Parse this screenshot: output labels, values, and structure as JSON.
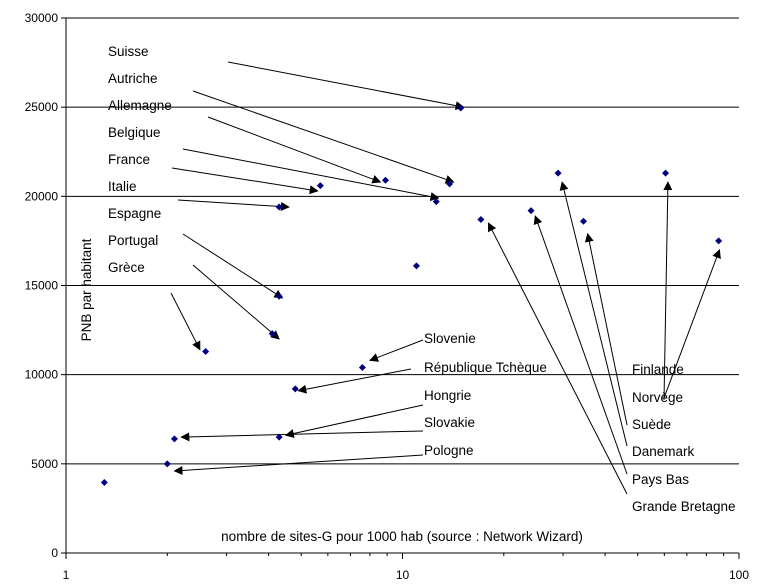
{
  "chart_data": {
    "type": "scatter",
    "title": "",
    "xlabel": "nombre de sites-G pour 1000 hab (source : Network Wizard)",
    "ylabel": "PNB par habitant",
    "xscale": "log",
    "xlim": [
      1,
      100
    ],
    "ylim": [
      0,
      30000
    ],
    "x_ticks": [
      "1",
      "10",
      "100"
    ],
    "y_ticks": [
      "0",
      "5000",
      "10000",
      "15000",
      "20000",
      "25000",
      "30000"
    ],
    "grid": "horizontal",
    "marker_color": "#000080",
    "points": [
      {
        "x": 14.9,
        "y": 24950
      },
      {
        "x": 13.8,
        "y": 20700
      },
      {
        "x": 8.9,
        "y": 20900
      },
      {
        "x": 12.6,
        "y": 19700
      },
      {
        "x": 5.7,
        "y": 20600
      },
      {
        "x": 4.3,
        "y": 19400
      },
      {
        "x": 4.3,
        "y": 14400
      },
      {
        "x": 4.1,
        "y": 12300
      },
      {
        "x": 2.6,
        "y": 11300
      },
      {
        "x": 7.6,
        "y": 10400
      },
      {
        "x": 4.8,
        "y": 9200
      },
      {
        "x": 4.3,
        "y": 6500
      },
      {
        "x": 2.1,
        "y": 6400
      },
      {
        "x": 2.0,
        "y": 5000
      },
      {
        "x": 1.3,
        "y": 3950
      },
      {
        "x": 11.0,
        "y": 16100
      },
      {
        "x": 17.1,
        "y": 18700
      },
      {
        "x": 24.1,
        "y": 19200
      },
      {
        "x": 29.0,
        "y": 21300
      },
      {
        "x": 34.5,
        "y": 18600
      },
      {
        "x": 60.5,
        "y": 21300
      },
      {
        "x": 87.0,
        "y": 17500
      }
    ],
    "annotations": [
      {
        "label": "Suisse",
        "arrow_to": {
          "x": 15.2,
          "y": 25000
        }
      },
      {
        "label": "Autriche",
        "arrow_to": {
          "x": 14.2,
          "y": 20800
        }
      },
      {
        "label": "Allemagne",
        "arrow_to": {
          "x": 8.6,
          "y": 20800
        }
      },
      {
        "label": "Belgique",
        "arrow_to": {
          "x": 12.8,
          "y": 19900
        }
      },
      {
        "label": "France",
        "arrow_to": {
          "x": 5.6,
          "y": 20300
        }
      },
      {
        "label": "Italie",
        "arrow_to": {
          "x": 4.6,
          "y": 19400
        }
      },
      {
        "label": "Espagne",
        "arrow_to": {
          "x": 4.4,
          "y": 14300
        }
      },
      {
        "label": "Portugal",
        "arrow_to": {
          "x": 4.3,
          "y": 12000
        }
      },
      {
        "label": "Grèce",
        "arrow_to": {
          "x": 2.5,
          "y": 11400
        }
      },
      {
        "label": "Slovenie",
        "arrow_to": {
          "x": 8.0,
          "y": 10800
        }
      },
      {
        "label": "République Tchèque",
        "arrow_to": {
          "x": 4.9,
          "y": 9100
        }
      },
      {
        "label": "Hongrie",
        "arrow_to": {
          "x": 4.5,
          "y": 6600
        }
      },
      {
        "label": "Slovakie",
        "arrow_to": {
          "x": 2.2,
          "y": 6500
        }
      },
      {
        "label": "Pologne",
        "arrow_to": {
          "x": 2.1,
          "y": 4600
        }
      },
      {
        "label": "Finlande",
        "arrow_to": {
          "x": 87.5,
          "y": 17000
        }
      },
      {
        "label": "Norvège",
        "arrow_to": {
          "x": 61.5,
          "y": 20800
        }
      },
      {
        "label": "Suède",
        "arrow_to": {
          "x": 35.5,
          "y": 17900
        }
      },
      {
        "label": "Danemark",
        "arrow_to": {
          "x": 29.8,
          "y": 20800
        }
      },
      {
        "label": "Pays Bas",
        "arrow_to": {
          "x": 24.8,
          "y": 18900
        }
      },
      {
        "label": "Grande Bretagne",
        "arrow_to": {
          "x": 18.0,
          "y": 18500
        }
      }
    ]
  }
}
